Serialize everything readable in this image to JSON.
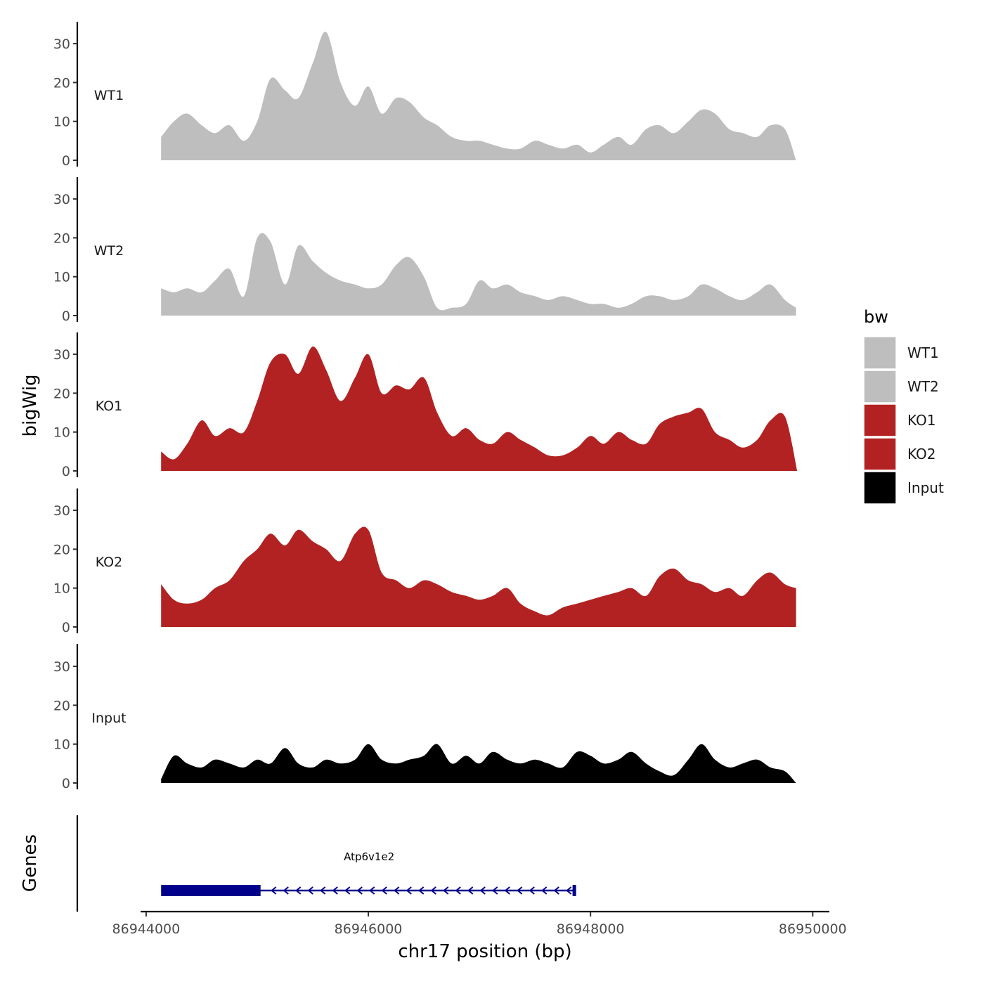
{
  "chart_data": {
    "type": "area",
    "title": "",
    "ylabel": "bigWig",
    "xlabel": "chr17 position (bp)",
    "genes_label": "Genes",
    "ylim": [
      0,
      35
    ],
    "yticks": [
      0,
      10,
      20,
      30
    ],
    "xlim": [
      86943950,
      86950150
    ],
    "xticks": [
      86944000,
      86946000,
      86948000,
      86950000
    ],
    "xtick_labels": [
      "86944000",
      "86946000",
      "86948000",
      "86950000"
    ],
    "legend": {
      "title": "bw",
      "position": "right",
      "items": [
        {
          "label": "WT1",
          "color": "#bebebe"
        },
        {
          "label": "WT2",
          "color": "#bebebe"
        },
        {
          "label": "KO1",
          "color": "#b22222"
        },
        {
          "label": "KO2",
          "color": "#b22222"
        },
        {
          "label": "Input",
          "color": "#000000"
        }
      ]
    },
    "tracks": [
      {
        "name": "WT1",
        "color": "#bebebe",
        "x": [
          86944135,
          86944250,
          86944370,
          86944500,
          86944620,
          86944750,
          86944880,
          86945000,
          86945120,
          86945250,
          86945370,
          86945500,
          86945620,
          86945750,
          86945880,
          86946000,
          86946120,
          86946250,
          86946370,
          86946500,
          86946620,
          86946750,
          86946880,
          86947000,
          86947120,
          86947250,
          86947370,
          86947500,
          86947620,
          86947750,
          86947880,
          86948000,
          86948120,
          86948250,
          86948370,
          86948500,
          86948620,
          86948750,
          86948880,
          86949000,
          86949120,
          86949250,
          86949370,
          86949500,
          86949620,
          86949750,
          86949850
        ],
        "y": [
          6,
          10,
          12,
          9,
          7,
          9,
          5,
          10,
          21,
          18,
          16,
          25,
          33,
          20,
          14,
          19,
          12,
          16,
          15,
          11,
          9,
          6,
          5,
          5,
          4,
          3,
          3,
          5,
          4,
          3,
          4,
          2,
          4,
          6,
          4,
          8,
          9,
          7,
          10,
          13,
          12,
          8,
          7,
          6,
          9,
          8,
          0
        ]
      },
      {
        "name": "WT2",
        "color": "#bebebe",
        "x": [
          86944135,
          86944250,
          86944370,
          86944500,
          86944620,
          86944750,
          86944880,
          86945000,
          86945120,
          86945250,
          86945370,
          86945500,
          86945620,
          86945750,
          86945880,
          86946000,
          86946120,
          86946250,
          86946370,
          86946500,
          86946620,
          86946750,
          86946880,
          86947000,
          86947120,
          86947250,
          86947370,
          86947500,
          86947620,
          86947750,
          86947880,
          86948000,
          86948120,
          86948250,
          86948370,
          86948500,
          86948620,
          86948750,
          86948880,
          86949000,
          86949120,
          86949250,
          86949370,
          86949500,
          86949620,
          86949750,
          86949850
        ],
        "y": [
          7,
          6,
          7,
          6,
          9,
          12,
          5,
          20,
          19,
          8,
          18,
          14,
          11,
          9,
          8,
          7,
          8,
          13,
          15,
          10,
          2,
          2,
          3,
          9,
          7,
          8,
          6,
          5,
          4,
          5,
          4,
          3,
          3,
          2,
          3,
          5,
          5,
          4,
          5,
          8,
          7,
          5,
          4,
          6,
          8,
          4,
          2
        ]
      },
      {
        "name": "KO1",
        "color": "#b22222",
        "x": [
          86944135,
          86944250,
          86944370,
          86944500,
          86944620,
          86944750,
          86944880,
          86945000,
          86945120,
          86945250,
          86945370,
          86945500,
          86945620,
          86945750,
          86945880,
          86946000,
          86946120,
          86946250,
          86946370,
          86946500,
          86946620,
          86946750,
          86946880,
          86947000,
          86947120,
          86947250,
          86947370,
          86947500,
          86947620,
          86947750,
          86947880,
          86948000,
          86948120,
          86948250,
          86948370,
          86948500,
          86948620,
          86948750,
          86948880,
          86949000,
          86949120,
          86949250,
          86949370,
          86949500,
          86949620,
          86949750,
          86949860
        ],
        "y": [
          5,
          3,
          7,
          13,
          9,
          11,
          10,
          18,
          28,
          30,
          25,
          32,
          26,
          18,
          24,
          30,
          20,
          22,
          21,
          24,
          15,
          9,
          11,
          8,
          7,
          10,
          8,
          6,
          4,
          4,
          6,
          9,
          7,
          10,
          8,
          7,
          12,
          14,
          15,
          16,
          10,
          8,
          6,
          8,
          13,
          14,
          0
        ]
      },
      {
        "name": "KO2",
        "color": "#b22222",
        "x": [
          86944135,
          86944250,
          86944370,
          86944500,
          86944620,
          86944750,
          86944880,
          86945000,
          86945120,
          86945250,
          86945370,
          86945500,
          86945620,
          86945750,
          86945880,
          86946000,
          86946120,
          86946250,
          86946370,
          86946500,
          86946620,
          86946750,
          86946880,
          86947000,
          86947120,
          86947250,
          86947370,
          86947500,
          86947620,
          86947750,
          86947880,
          86948000,
          86948120,
          86948250,
          86948370,
          86948500,
          86948620,
          86948750,
          86948880,
          86949000,
          86949120,
          86949250,
          86949370,
          86949500,
          86949620,
          86949750,
          86949850
        ],
        "y": [
          11,
          7,
          6,
          7,
          10,
          12,
          17,
          20,
          24,
          21,
          25,
          22,
          20,
          17,
          24,
          25,
          14,
          12,
          10,
          12,
          11,
          9,
          8,
          7,
          8,
          10,
          6,
          4,
          3,
          5,
          6,
          7,
          8,
          9,
          10,
          8,
          13,
          15,
          12,
          11,
          9,
          10,
          8,
          12,
          14,
          11,
          10
        ]
      },
      {
        "name": "Input",
        "color": "#000000",
        "x": [
          86944135,
          86944250,
          86944370,
          86944500,
          86944620,
          86944750,
          86944880,
          86945000,
          86945120,
          86945250,
          86945370,
          86945500,
          86945620,
          86945750,
          86945880,
          86946000,
          86946120,
          86946250,
          86946370,
          86946500,
          86946620,
          86946750,
          86946880,
          86947000,
          86947120,
          86947250,
          86947370,
          86947500,
          86947620,
          86947750,
          86947880,
          86948000,
          86948120,
          86948250,
          86948370,
          86948500,
          86948620,
          86948750,
          86948880,
          86949000,
          86949120,
          86949250,
          86949370,
          86949500,
          86949620,
          86949750,
          86949850
        ],
        "y": [
          1,
          7,
          5,
          4,
          6,
          5,
          4,
          6,
          5,
          9,
          5,
          4,
          6,
          5,
          6,
          10,
          6,
          5,
          6,
          7,
          10,
          5,
          7,
          5,
          8,
          6,
          5,
          6,
          5,
          4,
          8,
          7,
          5,
          6,
          8,
          5,
          3,
          2,
          6,
          10,
          6,
          4,
          5,
          6,
          4,
          3,
          0
        ]
      }
    ],
    "gene": {
      "name": "Atp6v1e2",
      "strand": "-",
      "start": 86944135,
      "end": 86947870,
      "thick_start": 86944135,
      "thick_end": 86945030,
      "color": "#00008b"
    }
  }
}
